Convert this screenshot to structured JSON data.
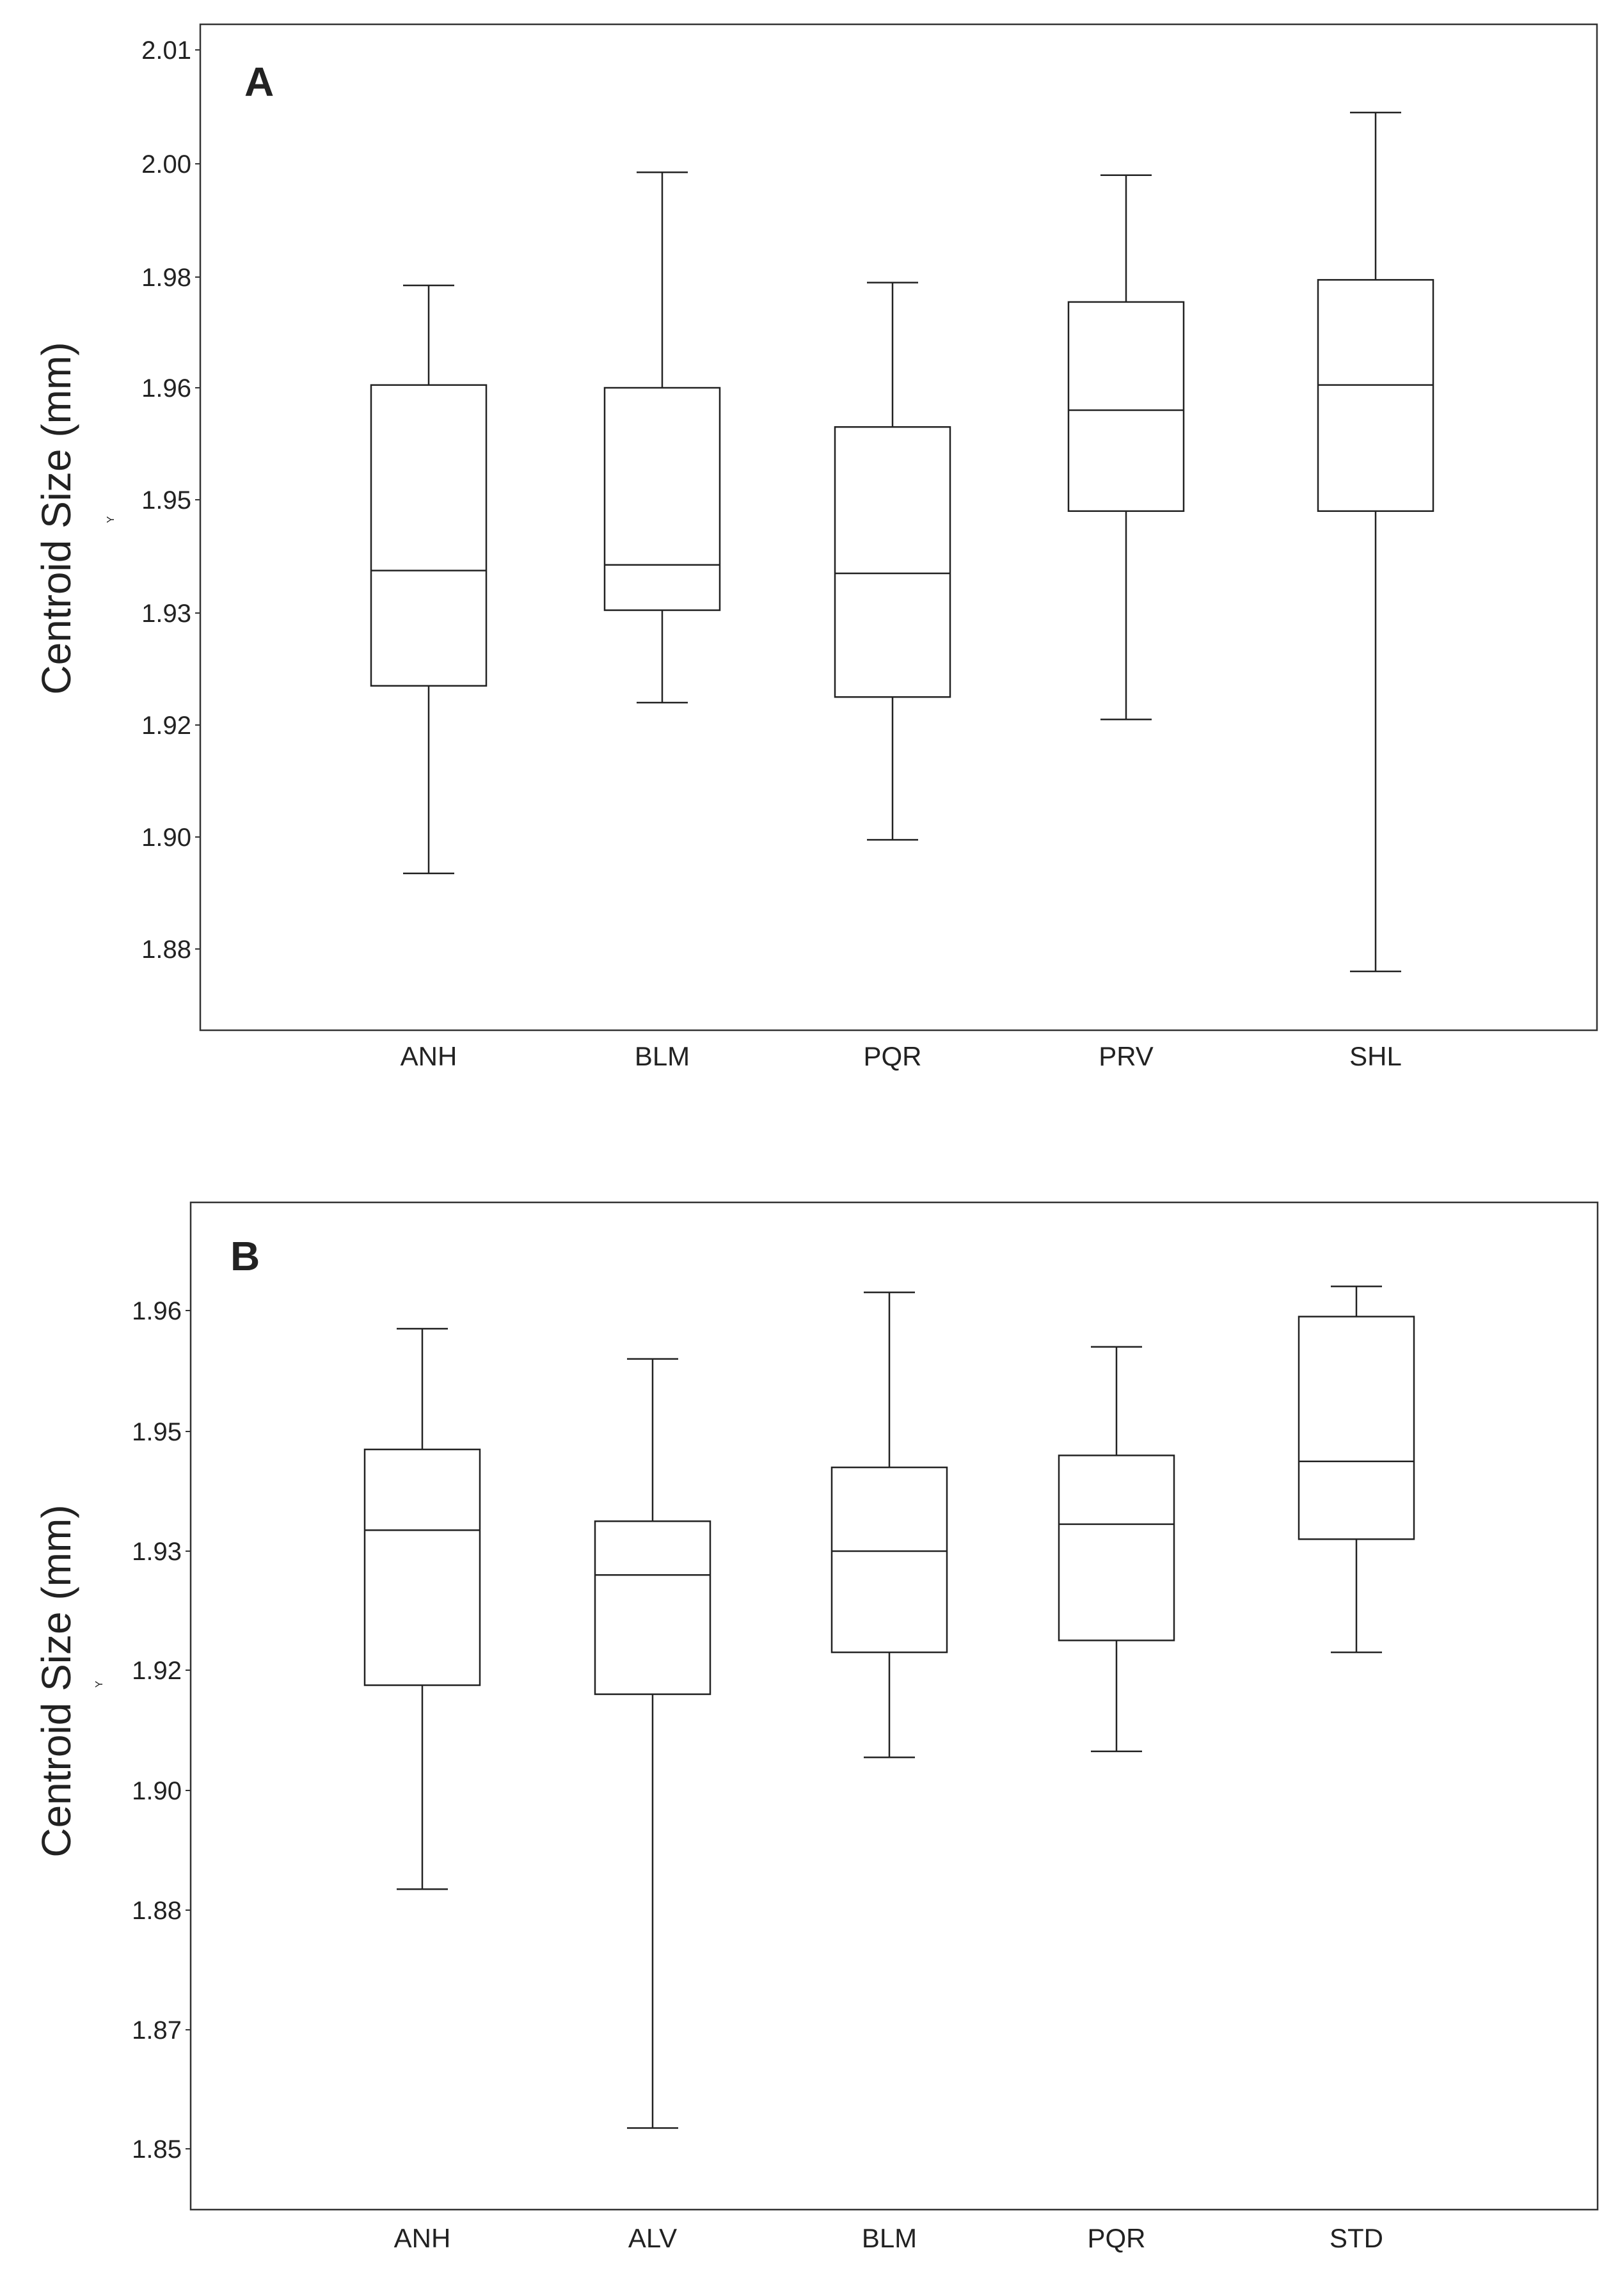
{
  "chart_data": [
    {
      "type": "box",
      "panel_label": "A",
      "ylabel": "Centroid Size (mm)",
      "y_small_label": "Y",
      "yticks": [
        "2.01",
        "2.00",
        "1.98",
        "1.96",
        "1.95",
        "1.93",
        "1.92",
        "1.90",
        "1.88"
      ],
      "categories": [
        "ANH",
        "BLM",
        "PQR",
        "PRV",
        "SHL"
      ],
      "boxes": [
        {
          "category": "ANH",
          "whisker_high": 1.9785,
          "q3": 1.9605,
          "median": 1.9375,
          "q1": 1.9235,
          "whisker_low": 1.8935
        },
        {
          "category": "BLM",
          "whisker_high": 1.9985,
          "q3": 1.96,
          "median": 1.9385,
          "q1": 1.9305,
          "whisker_low": 1.922
        },
        {
          "category": "PQR",
          "whisker_high": 1.979,
          "q3": 1.9565,
          "median": 1.937,
          "q1": 1.9225,
          "whisker_low": 1.8995
        },
        {
          "category": "PRV",
          "whisker_high": 1.998,
          "q3": 1.9755,
          "median": 1.958,
          "q1": 1.948,
          "whisker_low": 1.9205
        },
        {
          "category": "SHL",
          "whisker_high": 2.0045,
          "q3": 1.9795,
          "median": 1.9605,
          "q1": 1.948,
          "whisker_low": 1.876
        }
      ]
    },
    {
      "type": "box",
      "panel_label": "B",
      "ylabel": "Centroid Size (mm)",
      "y_small_label": "Y",
      "yticks": [
        "1.96",
        "1.95",
        "1.93",
        "1.92",
        "1.90",
        "1.88",
        "1.87",
        "1.85"
      ],
      "categories": [
        "ANH",
        "ALV",
        "BLM",
        "PQR",
        "STD"
      ],
      "boxes": [
        {
          "category": "ANH",
          "whisker_high": 1.9585,
          "q3": 1.947,
          "median": 1.9335,
          "q1": 1.9175,
          "whisker_low": 1.8835
        },
        {
          "category": "ALV",
          "whisker_high": 1.956,
          "q3": 1.935,
          "median": 1.928,
          "q1": 1.916,
          "whisker_low": 1.8535
        },
        {
          "category": "BLM",
          "whisker_high": 1.9615,
          "q3": 1.944,
          "median": 1.93,
          "q1": 1.9215,
          "whisker_low": 1.9055
        },
        {
          "category": "PQR",
          "whisker_high": 1.957,
          "q3": 1.946,
          "median": 1.9345,
          "q1": 1.9225,
          "whisker_low": 1.9065
        },
        {
          "category": "STD",
          "whisker_high": 1.962,
          "q3": 1.9595,
          "median": 1.945,
          "q1": 1.932,
          "whisker_low": 1.9215
        }
      ]
    }
  ]
}
